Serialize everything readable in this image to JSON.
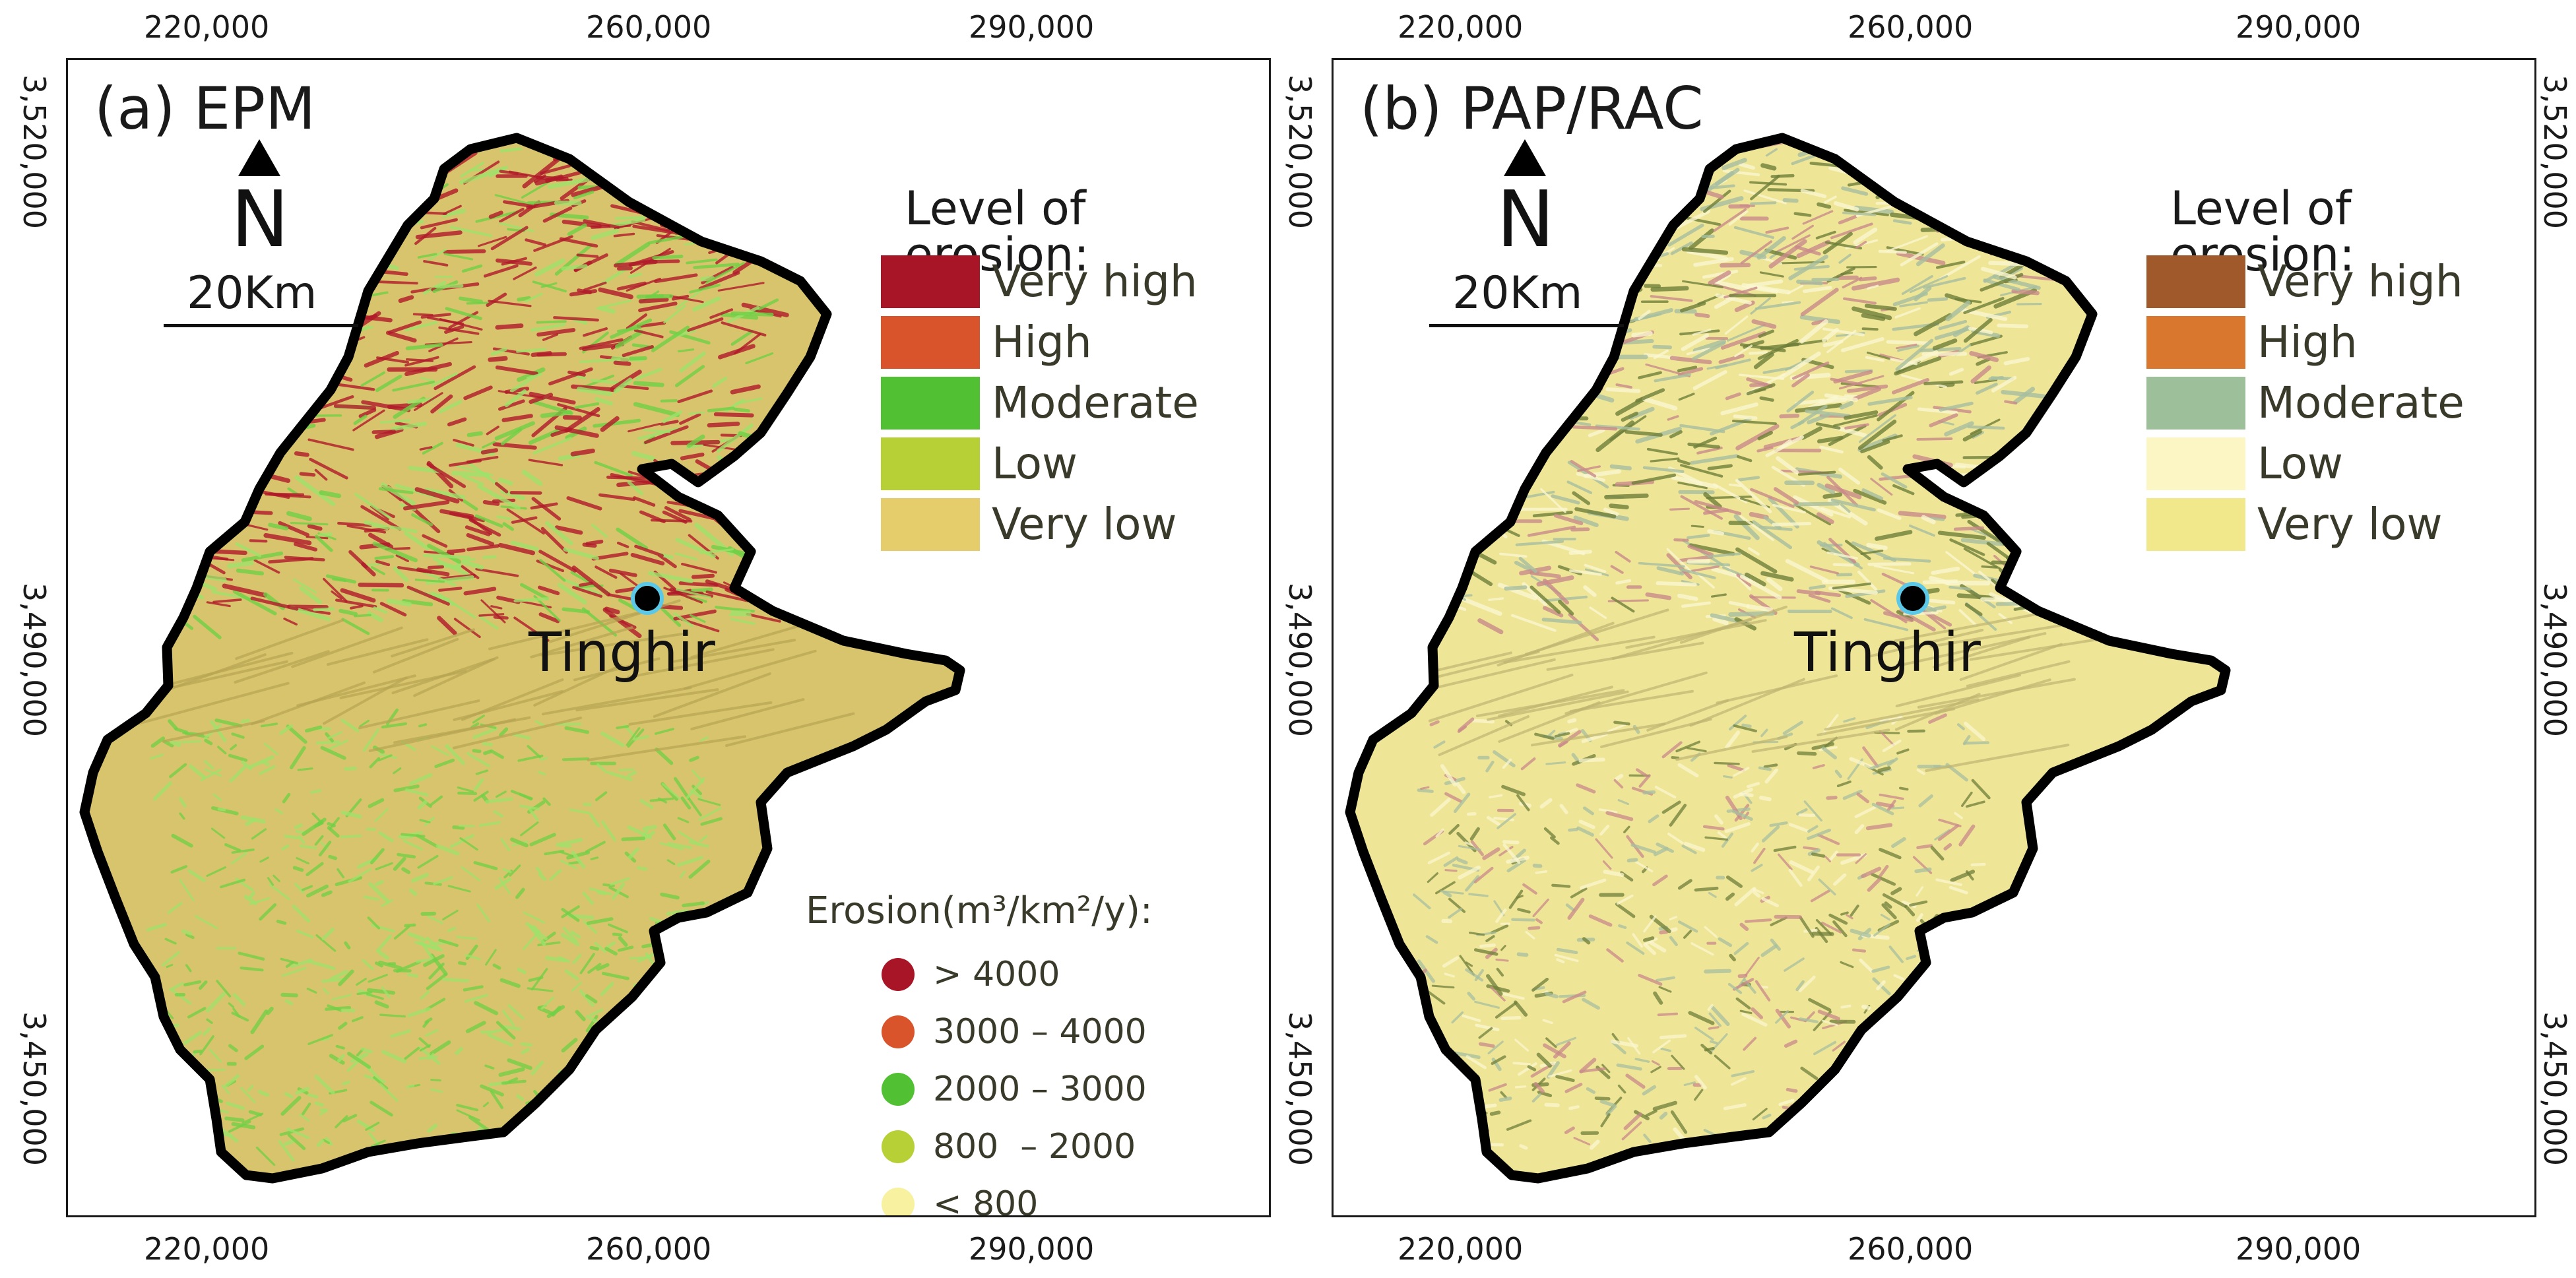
{
  "axes": {
    "x_ticks": [
      "220,000",
      "260,000",
      "290,000"
    ],
    "y_ticks": [
      "3,520,000",
      "3,490,000",
      "3,450,000"
    ]
  },
  "panels": [
    {
      "title": "(a) EPM",
      "north_label": "N",
      "scale_label": "20Km",
      "legend_title": "Level of erosion:",
      "legend": [
        {
          "label": "Very high",
          "color": "#a81526"
        },
        {
          "label": "High",
          "color": "#d9532b"
        },
        {
          "label": "Moderate",
          "color": "#52c033"
        },
        {
          "label": "Low",
          "color": "#b6d036"
        },
        {
          "label": "Very low",
          "color": "#e4cd6a"
        }
      ],
      "erosion_legend_title": "Erosion(m³/km²/y):",
      "erosion_classes": [
        {
          "label": "> 4000",
          "color": "#a81526"
        },
        {
          "label": "3000 – 4000",
          "color": "#d9532b"
        },
        {
          "label": "2000 – 3000",
          "color": "#52c033"
        },
        {
          "label": "800  – 2000",
          "color": "#b6d036"
        },
        {
          "label": "< 800",
          "color": "#f7f1a0"
        }
      ],
      "city": "Tinghir",
      "base_color": "#d8c46c",
      "texture_colors": [
        "#b11a2a",
        "#6fd146",
        "#9ee36b"
      ]
    },
    {
      "title": "(b) PAP/RAC",
      "north_label": "N",
      "scale_label": "20Km",
      "legend_title": "Level of erosion:",
      "legend": [
        {
          "label": "Very high",
          "color": "#a0592a"
        },
        {
          "label": "High",
          "color": "#d9772f"
        },
        {
          "label": "Moderate",
          "color": "#9dbf9a"
        },
        {
          "label": "Low",
          "color": "#fbf6c4"
        },
        {
          "label": "Very low",
          "color": "#f1e88c"
        }
      ],
      "city": "Tinghir",
      "base_color": "#efe597",
      "texture_colors": [
        "#c98a8a",
        "#6f7f3a",
        "#a7bfa0",
        "#fbf7d0"
      ]
    }
  ]
}
